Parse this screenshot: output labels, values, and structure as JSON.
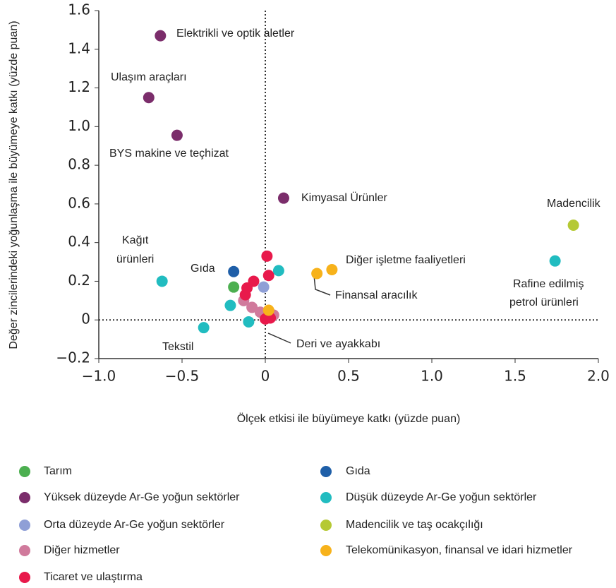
{
  "chart_data": {
    "type": "scatter",
    "xlabel": "Ölçek etkisi ile büyümeye katkı (yüzde puan)",
    "ylabel": "Değer zincilerindeki yoğunlaşma ile büyümeye katkı (yüzde puan)",
    "xlim": [
      -1,
      2
    ],
    "ylim": [
      -0.2,
      1.6
    ],
    "xticks": [
      {
        "value": -1,
        "label": "−1.0"
      },
      {
        "value": -0.5,
        "label": "−0.5"
      },
      0,
      0.5,
      {
        "value": 1,
        "label": "1.0"
      },
      1.5,
      {
        "value": 2,
        "label": "2.0"
      }
    ],
    "yticks": [
      {
        "value": -0.2,
        "label": "−0.2"
      },
      0,
      0.2,
      0.4,
      0.6,
      0.8,
      {
        "value": 1,
        "label": "1.0"
      },
      1.2,
      1.4,
      1.6
    ],
    "annotations": [
      "Elektrikli ve optik aletler",
      "Ulaşım araçları",
      "BYS makine ve teçhizat",
      "Kimyasal Ürünler",
      "Madencilik",
      "Kağıt",
      "ürünleri",
      "Gıda",
      "Diğer işletme faaliyetleri",
      "Finansal aracılık",
      "Rafine edilmiş",
      "petrol ürünleri",
      "Tekstil",
      "Deri ve ayakkabı"
    ],
    "series": [
      {
        "name": "Tarım",
        "color": "#4caf50",
        "x": [
          -0.19
        ],
        "values": [
          0.17
        ]
      },
      {
        "name": "Yüksek düzeyde Ar-Ge yoğun sektörler",
        "color": "#7b2d6b",
        "x": [
          -0.63,
          -0.7,
          -0.53,
          0.11
        ],
        "values": [
          1.47,
          1.15,
          0.955,
          0.63
        ]
      },
      {
        "name": "Orta  düzeyde Ar-Ge yoğun sektörler",
        "color": "#8f9fd6",
        "x": [
          -0.01
        ],
        "values": [
          0.17
        ]
      },
      {
        "name": "Diğer hizmetler",
        "color": "#d07a9c",
        "x": [
          -0.08,
          -0.03,
          0.05,
          -0.13
        ],
        "values": [
          0.065,
          0.04,
          0.025,
          0.1
        ]
      },
      {
        "name": "Ticaret ve ulaştırma",
        "color": "#e8194b",
        "x": [
          0.01,
          0.02,
          -0.07,
          -0.11,
          -0.12,
          0.0,
          0.02,
          0.03
        ],
        "values": [
          0.33,
          0.23,
          0.2,
          0.165,
          0.13,
          0.005,
          0.02,
          0.01
        ]
      },
      {
        "name": "Gıda",
        "color": "#1f5fa8",
        "x": [
          -0.19
        ],
        "values": [
          0.25
        ]
      },
      {
        "name": "Düşük düzeyde Ar-Ge yoğun sektörler",
        "color": "#21bcc0",
        "x": [
          -0.62,
          -0.37,
          -0.21,
          -0.1,
          0.08,
          1.74
        ],
        "values": [
          0.2,
          -0.04,
          0.075,
          -0.01,
          0.255,
          0.305
        ]
      },
      {
        "name": "Madencilik ve taş ocakçılığı",
        "color": "#b5c934",
        "x": [
          1.85
        ],
        "values": [
          0.49
        ]
      },
      {
        "name": "Telekomünikasyon,  finansal ve idari hizmetler",
        "color": "#f7b21b",
        "x": [
          0.31,
          0.4,
          0.02
        ],
        "values": [
          0.24,
          0.26,
          0.05
        ]
      }
    ]
  }
}
